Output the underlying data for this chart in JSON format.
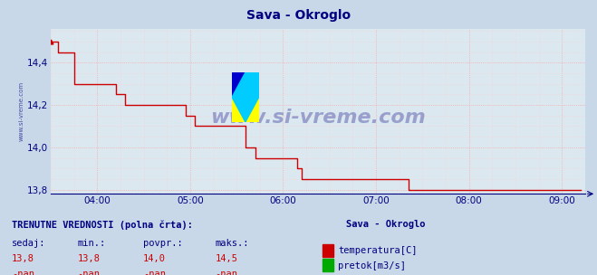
{
  "title": "Sava - Okroglo",
  "title_color": "#000080",
  "bg_color": "#c8d8e8",
  "plot_bg_color": "#dce8f0",
  "grid_color_major": "#ff9999",
  "grid_color_minor": "#ffcccc",
  "xmin": 3.5,
  "xmax": 9.25,
  "ymin": 13.78,
  "ymax": 14.56,
  "yticks": [
    13.8,
    14.0,
    14.2,
    14.4
  ],
  "xtick_labels": [
    "04:00",
    "05:00",
    "06:00",
    "07:00",
    "08:00",
    "09:00"
  ],
  "xtick_positions": [
    4.0,
    5.0,
    6.0,
    7.0,
    8.0,
    9.0
  ],
  "line_color": "#cc0000",
  "line_width": 1.0,
  "watermark_text": "www.si-vreme.com",
  "watermark_color": "#1a1a8c",
  "watermark_alpha": 0.35,
  "left_label": "www.si-vreme.com",
  "left_label_color": "#1a1a8c",
  "footer_title": "TRENUTNE VREDNOSTI (polna črta):",
  "footer_col_headers": [
    "sedaj:",
    "min.:",
    "povpr.:",
    "maks.:"
  ],
  "footer_col1": [
    "13,8",
    "13,8",
    "14,0",
    "14,5"
  ],
  "footer_col2": [
    "-nan",
    "-nan",
    "-nan",
    "-nan"
  ],
  "footer_station": "Sava - Okroglo",
  "footer_legend1_color": "#cc0000",
  "footer_legend1_label": "temperatura[C]",
  "footer_legend2_color": "#00aa00",
  "footer_legend2_label": "pretok[m3/s]",
  "temperature_data": [
    [
      3.5,
      14.5
    ],
    [
      3.58,
      14.5
    ],
    [
      3.58,
      14.45
    ],
    [
      3.75,
      14.45
    ],
    [
      3.75,
      14.3
    ],
    [
      4.2,
      14.3
    ],
    [
      4.2,
      14.25
    ],
    [
      4.3,
      14.25
    ],
    [
      4.3,
      14.2
    ],
    [
      4.95,
      14.2
    ],
    [
      4.95,
      14.15
    ],
    [
      5.05,
      14.15
    ],
    [
      5.05,
      14.1
    ],
    [
      5.6,
      14.1
    ],
    [
      5.6,
      14.0
    ],
    [
      5.7,
      14.0
    ],
    [
      5.7,
      13.95
    ],
    [
      6.15,
      13.95
    ],
    [
      6.15,
      13.9
    ],
    [
      6.2,
      13.9
    ],
    [
      6.2,
      13.85
    ],
    [
      7.35,
      13.85
    ],
    [
      7.35,
      13.8
    ],
    [
      9.2,
      13.8
    ]
  ]
}
